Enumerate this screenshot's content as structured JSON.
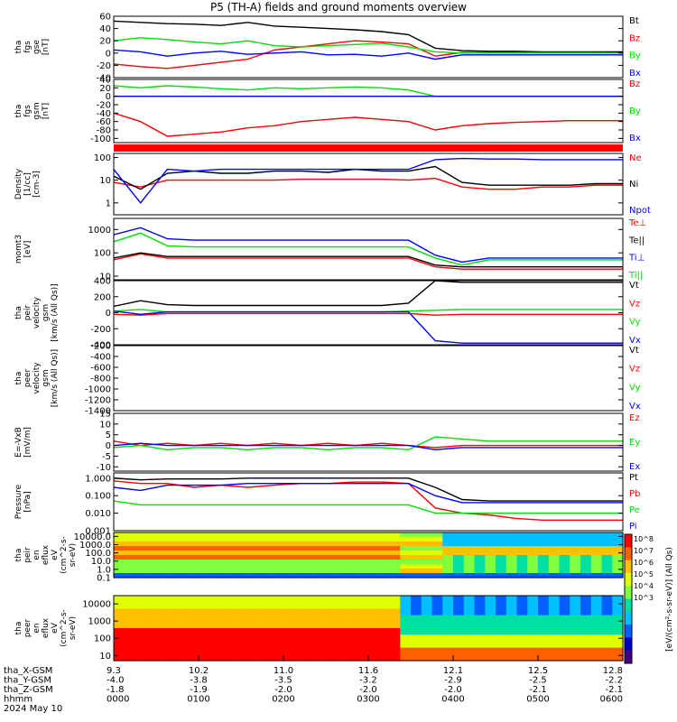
{
  "title": "P5 (TH-A) fields and ground moments overview",
  "colors": {
    "black": "#000000",
    "red": "#ff0000",
    "green": "#00e000",
    "blue": "#0000ff"
  },
  "chart_data": [
    {
      "type": "line",
      "panel": "fgs gse",
      "ylabel_lines": [
        "tha",
        "fgs",
        "gse",
        "[nT]"
      ],
      "ylim": [
        -40,
        60
      ],
      "ticks": [
        "60",
        "40",
        "20",
        "0",
        "-20",
        "-40"
      ],
      "tick_values": [
        60,
        40,
        20,
        0,
        -20,
        -40
      ],
      "series": [
        {
          "name": "Bt",
          "color": "#000000",
          "values": [
            52,
            50,
            48,
            47,
            45,
            50,
            44,
            42,
            40,
            38,
            35,
            30,
            8,
            4,
            3,
            3,
            2,
            2,
            2,
            2
          ]
        },
        {
          "name": "Bz",
          "color": "#ff0000",
          "values": [
            -18,
            -22,
            -25,
            -20,
            -15,
            -10,
            5,
            10,
            15,
            20,
            18,
            15,
            -5,
            1,
            1,
            1,
            1,
            1,
            1,
            0
          ]
        },
        {
          "name": "By",
          "color": "#00e000",
          "values": [
            20,
            25,
            22,
            18,
            15,
            20,
            12,
            10,
            12,
            14,
            16,
            10,
            2,
            0,
            0,
            0,
            0,
            0,
            0,
            0
          ]
        },
        {
          "name": "Bx",
          "color": "#0000ff",
          "values": [
            5,
            2,
            -5,
            0,
            3,
            -2,
            0,
            2,
            -3,
            -2,
            -5,
            0,
            -10,
            -3,
            -3,
            -3,
            -3,
            -3,
            -3,
            -3
          ]
        }
      ]
    },
    {
      "type": "line",
      "panel": "fgs gsm",
      "ylabel_lines": [
        "tha",
        "fgs",
        "gsm",
        "[nT]"
      ],
      "ylim": [
        -110,
        40
      ],
      "ticks": [
        "40",
        "20",
        "0",
        "-20",
        "-40",
        "-60",
        "-80",
        "-100"
      ],
      "tick_values": [
        40,
        20,
        0,
        -20,
        -40,
        -60,
        -80,
        -100
      ],
      "series": [
        {
          "name": "Bz",
          "color": "#ff0000",
          "values": [
            -40,
            -60,
            -95,
            -90,
            -85,
            -75,
            -70,
            -60,
            -55,
            -50,
            -55,
            -60,
            -80,
            -70,
            -65,
            -62,
            -60,
            -58,
            -58,
            -58
          ]
        },
        {
          "name": "By",
          "color": "#00e000",
          "values": [
            25,
            20,
            25,
            22,
            18,
            15,
            20,
            18,
            20,
            22,
            20,
            15,
            0,
            0,
            0,
            0,
            0,
            0,
            0,
            0
          ]
        },
        {
          "name": "Bx",
          "color": "#0000ff",
          "values": [
            0,
            0,
            0,
            0,
            0,
            0,
            0,
            0,
            0,
            0,
            0,
            0,
            0,
            0,
            0,
            0,
            0,
            0,
            0,
            0
          ]
        }
      ]
    },
    {
      "type": "line",
      "panel": "Density",
      "ylabel_lines": [
        "Density",
        "[1/cc]",
        "[cm-3]"
      ],
      "ylim": [
        0.3,
        150
      ],
      "log": true,
      "ticks": [
        "100",
        "10",
        "1"
      ],
      "tick_values": [
        100,
        10,
        1
      ],
      "series": [
        {
          "name": "Ne",
          "color": "#ff0000",
          "values": [
            8,
            5,
            10,
            10,
            10,
            10,
            10,
            11,
            11,
            11,
            11,
            10,
            12,
            5,
            4,
            4,
            5,
            5,
            6,
            6
          ]
        },
        {
          "name": "Ni",
          "color": "#000000",
          "values": [
            15,
            4,
            20,
            25,
            20,
            20,
            25,
            25,
            22,
            30,
            25,
            25,
            40,
            8,
            6,
            6,
            6,
            6,
            7,
            7
          ]
        },
        {
          "name": "Npot",
          "color": "#0000ff",
          "values": [
            30,
            1,
            30,
            25,
            30,
            30,
            30,
            30,
            30,
            30,
            30,
            30,
            80,
            90,
            85,
            85,
            80,
            80,
            80,
            80
          ]
        }
      ]
    },
    {
      "type": "line",
      "panel": "mom temperature",
      "ylabel_lines": [
        "momt3",
        "[eV]"
      ],
      "ylim": [
        7,
        3000
      ],
      "log": true,
      "ticks": [
        "1000",
        "100",
        "10"
      ],
      "tick_values": [
        1000,
        100,
        10
      ],
      "series": [
        {
          "name": "Te⊥",
          "color": "#ff0000",
          "values": [
            50,
            90,
            60,
            60,
            60,
            60,
            60,
            60,
            60,
            60,
            60,
            60,
            25,
            20,
            20,
            20,
            20,
            20,
            20,
            20
          ]
        },
        {
          "name": "Te||",
          "color": "#000000",
          "values": [
            60,
            100,
            70,
            70,
            70,
            70,
            70,
            70,
            70,
            70,
            70,
            70,
            30,
            25,
            25,
            25,
            25,
            25,
            25,
            25
          ]
        },
        {
          "name": "Ti⊥",
          "color": "#0000ff",
          "values": [
            600,
            1200,
            400,
            350,
            350,
            350,
            350,
            350,
            350,
            350,
            350,
            350,
            80,
            40,
            60,
            60,
            60,
            60,
            60,
            60
          ]
        },
        {
          "name": "Ti||",
          "color": "#00e000",
          "values": [
            300,
            700,
            200,
            180,
            180,
            180,
            180,
            180,
            180,
            180,
            180,
            180,
            60,
            30,
            50,
            50,
            50,
            50,
            50,
            50
          ]
        }
      ]
    },
    {
      "type": "line",
      "panel": "peir velocity gsm",
      "ylabel_lines": [
        "tha",
        "peir",
        "velocity",
        "gsm",
        "[km/s (All Qs)]"
      ],
      "ylim": [
        -400,
        400
      ],
      "ticks": [
        "400",
        "200",
        "0",
        "-200",
        "-400"
      ],
      "tick_values": [
        400,
        200,
        0,
        -200,
        -400
      ],
      "series": [
        {
          "name": "Vt",
          "color": "#000000",
          "values": [
            80,
            150,
            100,
            90,
            90,
            90,
            90,
            90,
            90,
            90,
            90,
            120,
            400,
            380,
            380,
            380,
            380,
            380,
            380,
            380
          ]
        },
        {
          "name": "Vz",
          "color": "#ff0000",
          "values": [
            -20,
            -30,
            -10,
            -10,
            -10,
            -10,
            -10,
            -10,
            -10,
            -10,
            -10,
            -10,
            -30,
            -20,
            -20,
            -20,
            -20,
            -20,
            -20,
            -20
          ]
        },
        {
          "name": "Vy",
          "color": "#00e000",
          "values": [
            20,
            40,
            10,
            10,
            10,
            10,
            10,
            10,
            10,
            10,
            10,
            20,
            30,
            40,
            40,
            40,
            40,
            40,
            40,
            40
          ]
        },
        {
          "name": "Vx",
          "color": "#0000ff",
          "values": [
            20,
            -20,
            10,
            10,
            10,
            10,
            10,
            10,
            10,
            10,
            10,
            10,
            -350,
            -380,
            -380,
            -380,
            -380,
            -380,
            -380,
            -380
          ]
        }
      ]
    },
    {
      "type": "line",
      "panel": "peer velocity gsm",
      "ylabel_lines": [
        "tha",
        "peer",
        "velocity",
        "gsm",
        "[km/s (All Qs)]"
      ],
      "ylim": [
        -1400,
        -200
      ],
      "ticks": [
        "-200",
        "-400",
        "-600",
        "-800",
        "-1000",
        "-1200",
        "-1400"
      ],
      "tick_values": [
        -200,
        -400,
        -600,
        -800,
        -1000,
        -1200,
        -1400
      ],
      "series": [
        {
          "name": "Vt",
          "color": "#000000",
          "values": []
        },
        {
          "name": "Vz",
          "color": "#ff0000",
          "values": []
        },
        {
          "name": "Vy",
          "color": "#00e000",
          "values": []
        },
        {
          "name": "Vx",
          "color": "#0000ff",
          "values": []
        }
      ]
    },
    {
      "type": "line",
      "panel": "E=-VxB",
      "ylabel_lines": [
        "E=-VxB",
        "[mV/m]"
      ],
      "ylim": [
        -12,
        15
      ],
      "ticks": [
        "15",
        "10",
        "5",
        "0",
        "-5",
        "-10"
      ],
      "tick_values": [
        15,
        10,
        5,
        0,
        -5,
        -10
      ],
      "series": [
        {
          "name": "Ez",
          "color": "#ff0000",
          "values": [
            2,
            0,
            1,
            0,
            1,
            0,
            1,
            0,
            1,
            0,
            1,
            0,
            -1,
            0,
            0,
            0,
            0,
            0,
            0,
            0
          ]
        },
        {
          "name": "Ey",
          "color": "#00e000",
          "values": [
            -1,
            0,
            -2,
            -1,
            -1,
            -2,
            -1,
            -1,
            -2,
            -1,
            -1,
            -2,
            4,
            3,
            2,
            2,
            2,
            2,
            2,
            2
          ]
        },
        {
          "name": "Ex",
          "color": "#0000ff",
          "values": [
            0,
            1,
            0,
            0,
            0,
            0,
            0,
            0,
            0,
            0,
            0,
            0,
            -2,
            -1,
            -1,
            -1,
            -1,
            -1,
            -1,
            -1
          ]
        }
      ]
    },
    {
      "type": "line",
      "panel": "Pressure",
      "ylabel_lines": [
        "Pressure",
        "[nPa]"
      ],
      "ylim": [
        0.001,
        2
      ],
      "log": true,
      "ticks": [
        "1.000",
        "0.100",
        "0.010",
        "0.001"
      ],
      "tick_values": [
        1,
        0.1,
        0.01,
        0.001
      ],
      "series": [
        {
          "name": "Pt",
          "color": "#000000",
          "values": [
            1.0,
            0.8,
            0.9,
            0.9,
            0.9,
            1.0,
            1.0,
            1.0,
            1.0,
            1.0,
            1.0,
            1.0,
            0.3,
            0.06,
            0.05,
            0.05,
            0.05,
            0.05,
            0.05,
            0.05
          ]
        },
        {
          "name": "Pb",
          "color": "#ff0000",
          "values": [
            0.7,
            0.5,
            0.5,
            0.3,
            0.4,
            0.3,
            0.4,
            0.5,
            0.5,
            0.6,
            0.6,
            0.5,
            0.02,
            0.01,
            0.008,
            0.005,
            0.004,
            0.004,
            0.004,
            0.004
          ]
        },
        {
          "name": "Pe",
          "color": "#00e000",
          "values": [
            0.05,
            0.03,
            0.03,
            0.03,
            0.03,
            0.03,
            0.03,
            0.03,
            0.03,
            0.03,
            0.03,
            0.03,
            0.01,
            0.01,
            0.01,
            0.01,
            0.01,
            0.01,
            0.01,
            0.01
          ]
        },
        {
          "name": "Pi",
          "color": "#0000ff",
          "values": [
            0.3,
            0.2,
            0.4,
            0.4,
            0.4,
            0.5,
            0.5,
            0.5,
            0.5,
            0.5,
            0.5,
            0.5,
            0.1,
            0.04,
            0.04,
            0.04,
            0.04,
            0.04,
            0.04,
            0.04
          ]
        }
      ]
    },
    {
      "type": "heatmap",
      "panel": "peir en eflux",
      "ylabel_lines": [
        "tha",
        "peir",
        "en",
        "eflux",
        "eV",
        "(cm^2-s-",
        "sr-eV)"
      ],
      "ticks": [
        "10000.0",
        "1000.0",
        "100.0",
        "10.0",
        "1.0",
        "0.1"
      ],
      "tick_values": [
        10000,
        1000,
        100,
        10,
        1,
        0.1
      ],
      "ylim": [
        0.1,
        30000
      ],
      "log": true
    },
    {
      "type": "heatmap",
      "panel": "peer en eflux",
      "ylabel_lines": [
        "tha",
        "peer",
        "en",
        "eflux",
        "eV",
        "(cm^2-s-",
        "sr-eV)"
      ],
      "ticks": [
        "10000",
        "1000",
        "100",
        "10"
      ],
      "tick_values": [
        10000,
        1000,
        100,
        10
      ],
      "ylim": [
        5,
        30000
      ],
      "log": true
    }
  ],
  "colorbar": {
    "label": "[eV/(cm²-s-sr-eV)] (All Qs)",
    "ticks": [
      "10^8",
      "10^7",
      "10^6",
      "10^5",
      "10^4",
      "10^3"
    ]
  },
  "xaxis": {
    "rows": [
      {
        "name": "tha_X-GSM",
        "values": [
          "9.3",
          "10.2",
          "11.0",
          "11.6",
          "12.1",
          "12.5",
          "12.8"
        ]
      },
      {
        "name": "tha_Y-GSM",
        "values": [
          "-4.0",
          "-3.8",
          "-3.5",
          "-3.2",
          "-2.9",
          "-2.5",
          "-2.2"
        ]
      },
      {
        "name": "tha_Z-GSM",
        "values": [
          "-1.8",
          "-1.9",
          "-2.0",
          "-2.0",
          "-2.0",
          "-2.1",
          "-2.1"
        ]
      },
      {
        "name": "hhmm",
        "values": [
          "0000",
          "0100",
          "0200",
          "0300",
          "0400",
          "0500",
          "0600"
        ]
      }
    ],
    "date": "2024 May 10"
  }
}
